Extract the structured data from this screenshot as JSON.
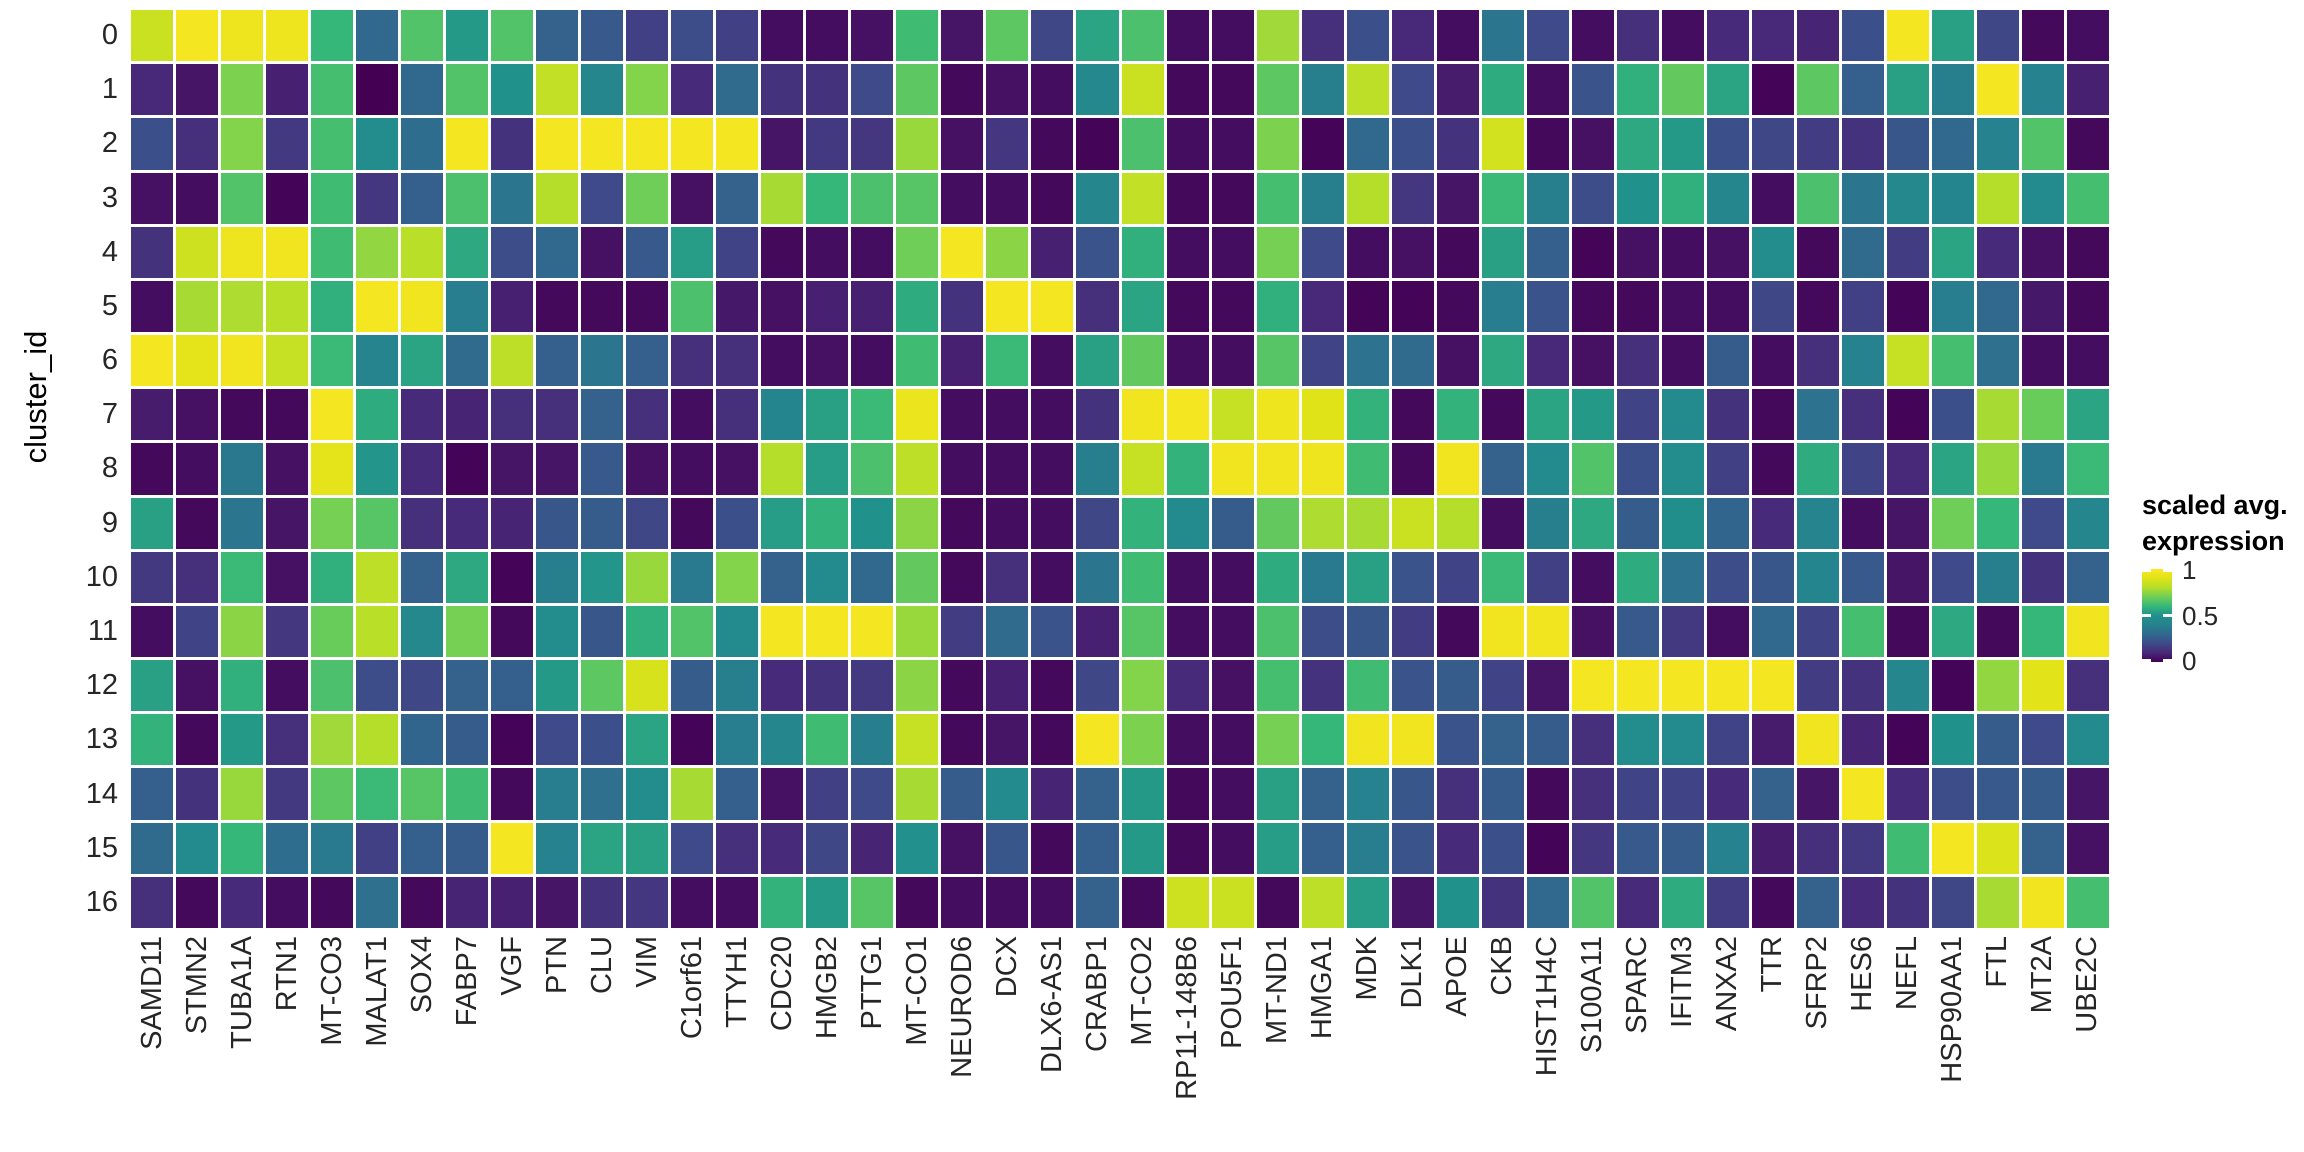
{
  "chart_data": {
    "type": "heatmap",
    "ylabel": "cluster_id",
    "grid": true,
    "value_range": [
      0,
      1
    ],
    "legend": {
      "title_line1": "scaled avg.",
      "title_line2": "expression",
      "ticks": [
        "1",
        "0.5",
        "0"
      ],
      "tick_values": [
        1,
        0.5,
        0
      ],
      "position": "right"
    },
    "colormap": "viridis",
    "colormap_stops": [
      [
        0.0,
        "#440154"
      ],
      [
        0.1,
        "#482878"
      ],
      [
        0.2,
        "#3e4a89"
      ],
      [
        0.3,
        "#31688e"
      ],
      [
        0.4,
        "#26828e"
      ],
      [
        0.5,
        "#21918c"
      ],
      [
        0.6,
        "#35b779"
      ],
      [
        0.7,
        "#6ece58"
      ],
      [
        0.8,
        "#b5de2b"
      ],
      [
        0.9,
        "#dfe318"
      ],
      [
        1.0,
        "#fde725"
      ]
    ],
    "row_labels": [
      "0",
      "1",
      "2",
      "3",
      "4",
      "5",
      "6",
      "7",
      "8",
      "9",
      "10",
      "11",
      "12",
      "13",
      "14",
      "15",
      "16"
    ],
    "col_labels": [
      "SAMD11",
      "STMN2",
      "TUBA1A",
      "RTN1",
      "MT-CO3",
      "MALAT1",
      "SOX4",
      "FABP7",
      "VGF",
      "PTN",
      "CLU",
      "VIM",
      "C1orf61",
      "TTYH1",
      "CDC20",
      "HMGB2",
      "PTTG1",
      "MT-CO1",
      "NEUROD6",
      "DCX",
      "DLX6-AS1",
      "CRABP1",
      "MT-CO2",
      "RP11-148B6",
      "POU5F1",
      "MT-ND1",
      "HMGA1",
      "MDK",
      "DLK1",
      "APOE",
      "CKB",
      "HIST1H4C",
      "S100A11",
      "SPARC",
      "IFITM3",
      "ANXA2",
      "TTR",
      "SFRP2",
      "HES6",
      "NEFL",
      "HSP90AA1",
      "FTL",
      "MT2A",
      "UBE2C"
    ],
    "values": [
      [
        0.85,
        0.97,
        0.95,
        0.95,
        0.6,
        0.3,
        0.65,
        0.52,
        0.65,
        0.28,
        0.25,
        0.17,
        0.21,
        0.17,
        0.03,
        0.03,
        0.04,
        0.62,
        0.05,
        0.67,
        0.19,
        0.55,
        0.64,
        0.03,
        0.03,
        0.77,
        0.12,
        0.22,
        0.1,
        0.03,
        0.35,
        0.2,
        0.03,
        0.12,
        0.03,
        0.11,
        0.1,
        0.09,
        0.22,
        0.97,
        0.54,
        0.19,
        0.02,
        0.03
      ],
      [
        0.1,
        0.05,
        0.72,
        0.08,
        0.63,
        0.0,
        0.3,
        0.65,
        0.5,
        0.83,
        0.43,
        0.73,
        0.11,
        0.31,
        0.13,
        0.13,
        0.2,
        0.67,
        0.02,
        0.04,
        0.03,
        0.44,
        0.85,
        0.02,
        0.02,
        0.67,
        0.39,
        0.82,
        0.2,
        0.07,
        0.57,
        0.03,
        0.23,
        0.58,
        0.68,
        0.55,
        0.01,
        0.67,
        0.27,
        0.54,
        0.39,
        0.97,
        0.4,
        0.08
      ],
      [
        0.22,
        0.12,
        0.73,
        0.15,
        0.63,
        0.47,
        0.32,
        0.97,
        0.13,
        0.97,
        0.97,
        0.97,
        0.97,
        0.97,
        0.05,
        0.15,
        0.14,
        0.76,
        0.04,
        0.14,
        0.02,
        0.01,
        0.64,
        0.03,
        0.03,
        0.72,
        0.01,
        0.3,
        0.22,
        0.13,
        0.87,
        0.02,
        0.04,
        0.56,
        0.52,
        0.22,
        0.19,
        0.16,
        0.13,
        0.24,
        0.3,
        0.4,
        0.65,
        0.02
      ],
      [
        0.04,
        0.03,
        0.65,
        0.01,
        0.62,
        0.14,
        0.27,
        0.64,
        0.35,
        0.8,
        0.2,
        0.7,
        0.04,
        0.28,
        0.78,
        0.6,
        0.64,
        0.66,
        0.03,
        0.03,
        0.02,
        0.43,
        0.83,
        0.02,
        0.02,
        0.63,
        0.39,
        0.8,
        0.14,
        0.05,
        0.61,
        0.39,
        0.21,
        0.5,
        0.58,
        0.43,
        0.03,
        0.64,
        0.35,
        0.44,
        0.42,
        0.8,
        0.46,
        0.63
      ],
      [
        0.13,
        0.86,
        0.95,
        0.96,
        0.62,
        0.75,
        0.81,
        0.56,
        0.21,
        0.3,
        0.04,
        0.25,
        0.53,
        0.18,
        0.02,
        0.03,
        0.03,
        0.7,
        0.97,
        0.74,
        0.08,
        0.23,
        0.58,
        0.03,
        0.03,
        0.71,
        0.2,
        0.03,
        0.04,
        0.02,
        0.54,
        0.27,
        0.01,
        0.04,
        0.03,
        0.04,
        0.47,
        0.02,
        0.31,
        0.16,
        0.55,
        0.11,
        0.04,
        0.02
      ],
      [
        0.03,
        0.78,
        0.79,
        0.81,
        0.58,
        0.97,
        0.96,
        0.38,
        0.08,
        0.02,
        0.02,
        0.02,
        0.64,
        0.06,
        0.04,
        0.08,
        0.08,
        0.57,
        0.13,
        0.97,
        0.97,
        0.12,
        0.55,
        0.02,
        0.02,
        0.58,
        0.1,
        0.01,
        0.01,
        0.02,
        0.38,
        0.23,
        0.02,
        0.02,
        0.03,
        0.03,
        0.19,
        0.02,
        0.17,
        0.01,
        0.38,
        0.3,
        0.06,
        0.02
      ],
      [
        0.97,
        0.92,
        0.96,
        0.84,
        0.61,
        0.41,
        0.55,
        0.31,
        0.82,
        0.27,
        0.35,
        0.27,
        0.12,
        0.12,
        0.03,
        0.04,
        0.03,
        0.62,
        0.08,
        0.61,
        0.03,
        0.54,
        0.68,
        0.03,
        0.03,
        0.66,
        0.18,
        0.34,
        0.31,
        0.04,
        0.56,
        0.1,
        0.04,
        0.12,
        0.03,
        0.26,
        0.03,
        0.12,
        0.4,
        0.84,
        0.63,
        0.33,
        0.03,
        0.03
      ],
      [
        0.07,
        0.04,
        0.02,
        0.02,
        0.97,
        0.57,
        0.11,
        0.09,
        0.12,
        0.12,
        0.28,
        0.12,
        0.03,
        0.12,
        0.42,
        0.54,
        0.61,
        0.94,
        0.03,
        0.03,
        0.03,
        0.13,
        0.96,
        0.97,
        0.84,
        0.95,
        0.9,
        0.59,
        0.02,
        0.59,
        0.02,
        0.55,
        0.52,
        0.18,
        0.46,
        0.13,
        0.02,
        0.34,
        0.12,
        0.01,
        0.22,
        0.78,
        0.69,
        0.55
      ],
      [
        0.02,
        0.03,
        0.36,
        0.04,
        0.92,
        0.51,
        0.11,
        0.01,
        0.05,
        0.05,
        0.25,
        0.04,
        0.03,
        0.04,
        0.8,
        0.53,
        0.64,
        0.82,
        0.03,
        0.03,
        0.03,
        0.39,
        0.84,
        0.59,
        0.96,
        0.96,
        0.95,
        0.62,
        0.02,
        0.96,
        0.28,
        0.46,
        0.65,
        0.22,
        0.47,
        0.17,
        0.02,
        0.57,
        0.18,
        0.1,
        0.55,
        0.76,
        0.37,
        0.61
      ],
      [
        0.54,
        0.02,
        0.35,
        0.05,
        0.71,
        0.66,
        0.12,
        0.11,
        0.09,
        0.24,
        0.26,
        0.19,
        0.02,
        0.22,
        0.53,
        0.59,
        0.5,
        0.74,
        0.02,
        0.03,
        0.03,
        0.19,
        0.59,
        0.46,
        0.26,
        0.68,
        0.79,
        0.78,
        0.85,
        0.8,
        0.03,
        0.39,
        0.56,
        0.26,
        0.48,
        0.29,
        0.11,
        0.41,
        0.03,
        0.05,
        0.7,
        0.6,
        0.2,
        0.43
      ],
      [
        0.15,
        0.12,
        0.61,
        0.04,
        0.58,
        0.82,
        0.28,
        0.56,
        0.01,
        0.39,
        0.51,
        0.76,
        0.37,
        0.73,
        0.28,
        0.46,
        0.3,
        0.68,
        0.02,
        0.12,
        0.03,
        0.35,
        0.62,
        0.03,
        0.03,
        0.57,
        0.37,
        0.54,
        0.23,
        0.18,
        0.61,
        0.17,
        0.03,
        0.57,
        0.34,
        0.21,
        0.24,
        0.42,
        0.25,
        0.05,
        0.2,
        0.39,
        0.13,
        0.28
      ],
      [
        0.03,
        0.18,
        0.74,
        0.14,
        0.69,
        0.81,
        0.44,
        0.71,
        0.02,
        0.47,
        0.24,
        0.58,
        0.65,
        0.46,
        0.97,
        0.97,
        0.97,
        0.76,
        0.16,
        0.31,
        0.23,
        0.08,
        0.66,
        0.03,
        0.03,
        0.64,
        0.21,
        0.24,
        0.16,
        0.02,
        0.96,
        0.96,
        0.04,
        0.25,
        0.15,
        0.03,
        0.3,
        0.18,
        0.63,
        0.02,
        0.56,
        0.02,
        0.6,
        0.96
      ],
      [
        0.54,
        0.04,
        0.58,
        0.03,
        0.64,
        0.21,
        0.19,
        0.28,
        0.27,
        0.52,
        0.67,
        0.88,
        0.26,
        0.39,
        0.11,
        0.13,
        0.15,
        0.74,
        0.02,
        0.08,
        0.02,
        0.19,
        0.73,
        0.11,
        0.04,
        0.63,
        0.13,
        0.62,
        0.23,
        0.26,
        0.18,
        0.05,
        0.97,
        0.97,
        0.97,
        0.97,
        0.97,
        0.16,
        0.13,
        0.43,
        0.01,
        0.75,
        0.91,
        0.12
      ],
      [
        0.59,
        0.02,
        0.52,
        0.12,
        0.77,
        0.8,
        0.29,
        0.26,
        0.01,
        0.2,
        0.22,
        0.55,
        0.01,
        0.38,
        0.43,
        0.62,
        0.39,
        0.84,
        0.02,
        0.05,
        0.02,
        0.97,
        0.72,
        0.03,
        0.03,
        0.71,
        0.6,
        0.96,
        0.96,
        0.23,
        0.28,
        0.26,
        0.12,
        0.47,
        0.46,
        0.18,
        0.07,
        0.96,
        0.09,
        0.01,
        0.5,
        0.26,
        0.2,
        0.46
      ],
      [
        0.27,
        0.13,
        0.76,
        0.15,
        0.67,
        0.61,
        0.66,
        0.62,
        0.02,
        0.38,
        0.33,
        0.47,
        0.78,
        0.27,
        0.04,
        0.17,
        0.2,
        0.78,
        0.26,
        0.46,
        0.09,
        0.28,
        0.52,
        0.02,
        0.03,
        0.54,
        0.28,
        0.4,
        0.24,
        0.12,
        0.26,
        0.02,
        0.12,
        0.18,
        0.18,
        0.11,
        0.28,
        0.05,
        0.97,
        0.11,
        0.21,
        0.25,
        0.26,
        0.05
      ],
      [
        0.31,
        0.46,
        0.6,
        0.32,
        0.37,
        0.17,
        0.27,
        0.26,
        0.97,
        0.4,
        0.55,
        0.54,
        0.2,
        0.12,
        0.11,
        0.19,
        0.09,
        0.49,
        0.04,
        0.24,
        0.02,
        0.27,
        0.52,
        0.02,
        0.03,
        0.53,
        0.27,
        0.38,
        0.23,
        0.11,
        0.22,
        0.01,
        0.14,
        0.25,
        0.26,
        0.4,
        0.07,
        0.12,
        0.15,
        0.62,
        0.97,
        0.89,
        0.28,
        0.04
      ],
      [
        0.12,
        0.02,
        0.11,
        0.03,
        0.02,
        0.33,
        0.02,
        0.09,
        0.08,
        0.05,
        0.13,
        0.14,
        0.03,
        0.03,
        0.59,
        0.52,
        0.66,
        0.02,
        0.03,
        0.03,
        0.03,
        0.28,
        0.02,
        0.86,
        0.85,
        0.02,
        0.82,
        0.53,
        0.05,
        0.5,
        0.13,
        0.3,
        0.65,
        0.11,
        0.57,
        0.16,
        0.02,
        0.28,
        0.11,
        0.13,
        0.19,
        0.78,
        0.96,
        0.63
      ]
    ]
  }
}
